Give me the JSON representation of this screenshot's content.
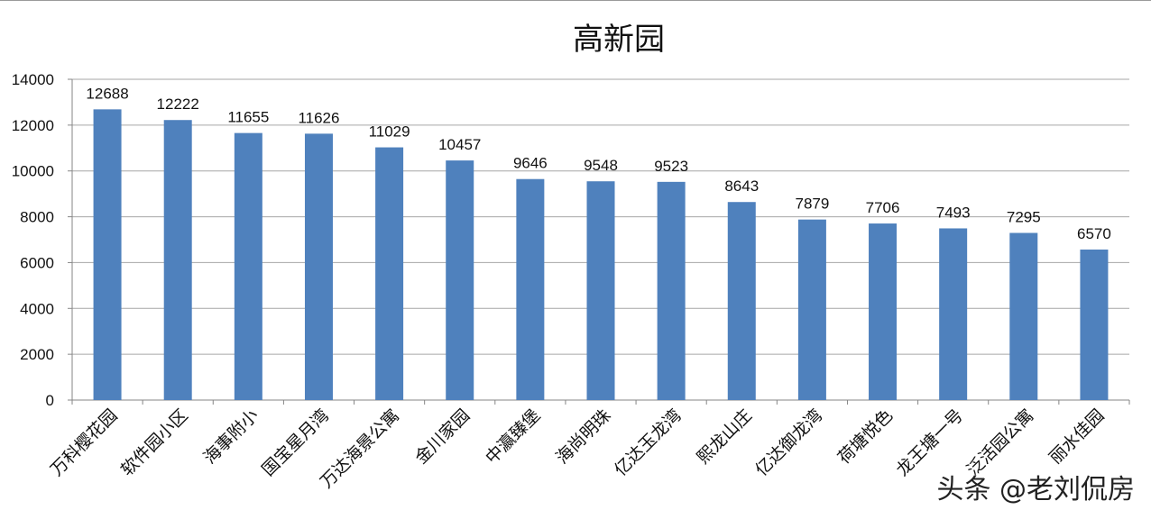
{
  "chart_data": {
    "type": "bar",
    "title": "高新园",
    "categories": [
      "万科樱花园",
      "软件园小区",
      "海事附小",
      "国宝星月湾",
      "万达海景公寓",
      "金川家园",
      "中瀛臻堡",
      "海尚明珠",
      "亿达玉龙湾",
      "熙龙山庄",
      "亿达御龙湾",
      "荷塘悦色",
      "龙王塘一号",
      "泛活园公寓",
      "丽水佳园"
    ],
    "values": [
      12688,
      12222,
      11655,
      11626,
      11029,
      10457,
      9646,
      9548,
      9523,
      8643,
      7879,
      7706,
      7493,
      7295,
      6570
    ],
    "ylim": [
      0,
      14000
    ],
    "yticks": [
      0,
      2000,
      4000,
      6000,
      8000,
      10000,
      12000,
      14000
    ],
    "grid": true,
    "legend": "none",
    "bar_color": "#4f81bd",
    "xlabel": "",
    "ylabel": ""
  },
  "watermark": "头条 @老刘侃房"
}
